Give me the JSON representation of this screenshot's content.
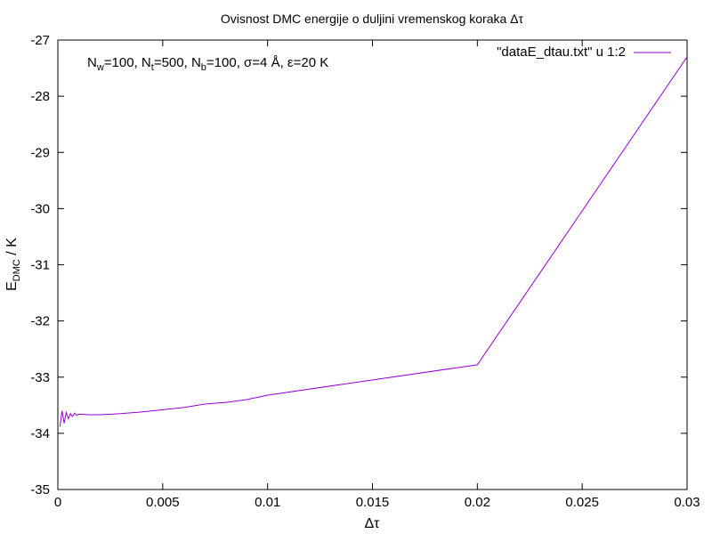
{
  "chart_data": {
    "type": "line",
    "title": "Ovisnost DMC energije o duljini vremenskog koraka Δτ",
    "xlabel": "Δτ",
    "ylabel_main": "E",
    "ylabel_sub": "DMC",
    "ylabel_unit": " / K",
    "xlim": [
      0,
      0.03
    ],
    "ylim": [
      -35,
      -27
    ],
    "x_ticks": [
      0,
      0.005,
      0.01,
      0.015,
      0.02,
      0.025,
      0.03
    ],
    "x_tick_labels": [
      "0",
      "0.005",
      "0.01",
      "0.015",
      "0.02",
      "0.025",
      "0.03"
    ],
    "y_ticks": [
      -35,
      -34,
      -33,
      -32,
      -31,
      -30,
      -29,
      -28,
      -27
    ],
    "y_tick_labels": [
      "-35",
      "-34",
      "-33",
      "-32",
      "-31",
      "-30",
      "-29",
      "-28",
      "-27"
    ],
    "grid": false,
    "legend_position": "top-right",
    "series": [
      {
        "name": "\"dataE_dtau.txt\" u 1:2",
        "color": "#9400d3",
        "x": [
          0.0001,
          0.0002,
          0.0003,
          0.0004,
          0.0005,
          0.0006,
          0.0007,
          0.0008,
          0.0009,
          0.001,
          0.0015,
          0.002,
          0.003,
          0.004,
          0.005,
          0.006,
          0.007,
          0.008,
          0.009,
          0.01,
          0.02,
          0.03
        ],
        "y": [
          -33.88,
          -33.6,
          -33.82,
          -33.63,
          -33.74,
          -33.65,
          -33.7,
          -33.64,
          -33.68,
          -33.66,
          -33.67,
          -33.67,
          -33.65,
          -33.62,
          -33.58,
          -33.54,
          -33.48,
          -33.45,
          -33.4,
          -33.32,
          -32.78,
          -27.3
        ]
      }
    ],
    "annotation": {
      "parts": [
        {
          "t": "N",
          "sub": false
        },
        {
          "t": "w",
          "sub": true
        },
        {
          "t": "=100, N",
          "sub": false
        },
        {
          "t": "t",
          "sub": true
        },
        {
          "t": "=500, N",
          "sub": false
        },
        {
          "t": "b",
          "sub": true
        },
        {
          "t": "=100, σ=4 Å, ε=20 K",
          "sub": false
        }
      ]
    }
  }
}
